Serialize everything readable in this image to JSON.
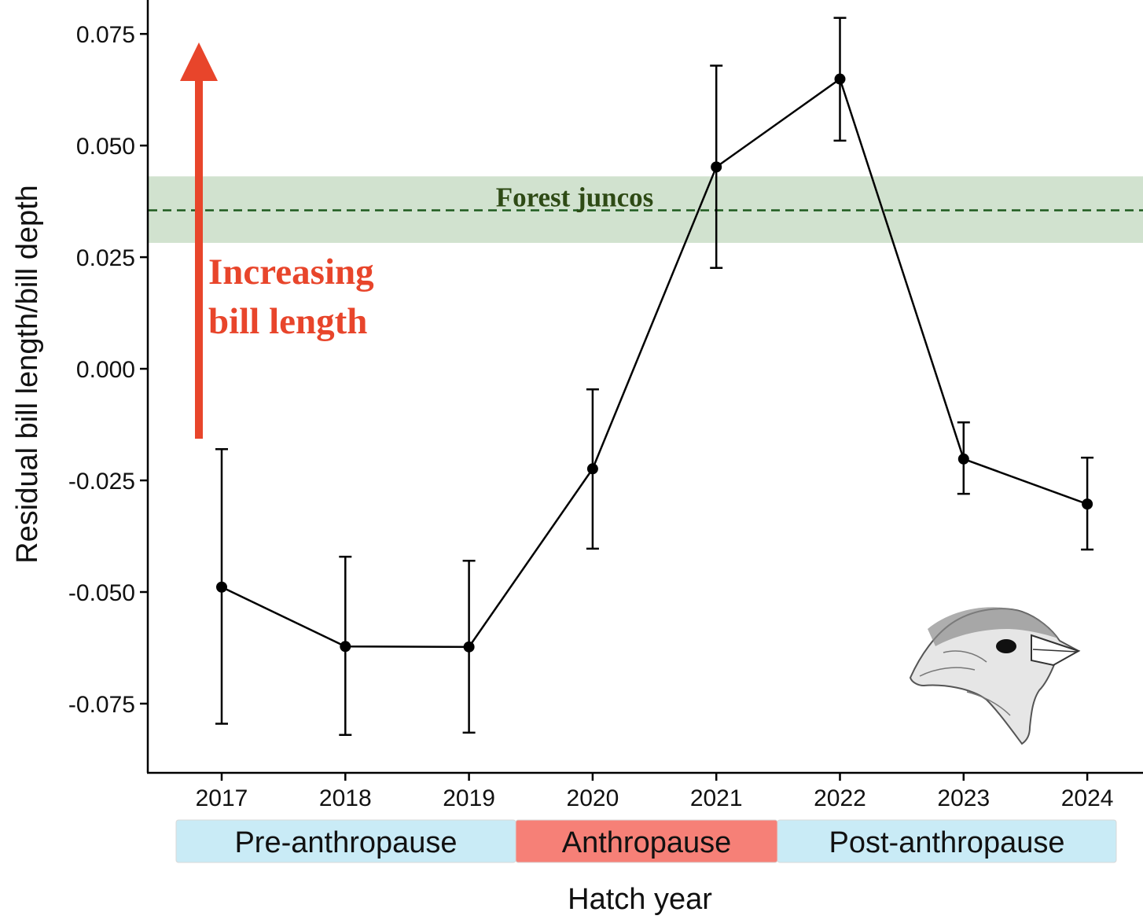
{
  "chart_data": {
    "type": "line",
    "title": "",
    "xlabel": "Hatch year",
    "ylabel": "Residual bill length/bill depth",
    "ylim": [
      -0.0905,
      0.0826
    ],
    "x": [
      "2017",
      "2018",
      "2019",
      "2020",
      "2021",
      "2022",
      "2023",
      "2024"
    ],
    "y_ticks": [
      "0.075",
      "0.050",
      "0.025",
      "0.000",
      "-0.025",
      "-0.050",
      "-0.075"
    ],
    "y_tick_values": [
      0.075,
      0.05,
      0.025,
      0.0,
      -0.025,
      -0.05,
      -0.075
    ],
    "series": [
      {
        "name": "Residual bill length/bill depth",
        "values": [
          -0.0489,
          -0.0622,
          -0.0623,
          -0.0224,
          0.0452,
          0.0649,
          -0.0202,
          -0.0303
        ],
        "error_low": [
          -0.0795,
          -0.082,
          -0.0815,
          -0.0403,
          0.0226,
          0.0511,
          -0.028,
          -0.0405
        ],
        "error_high": [
          -0.018,
          -0.0421,
          -0.043,
          -0.0046,
          0.0679,
          0.0786,
          -0.012,
          -0.0199
        ],
        "color": "#000000"
      }
    ],
    "reference": {
      "label": "Forest juncos",
      "value": 0.0355,
      "band": [
        0.0282,
        0.0431
      ],
      "line_color": "#1e5a1e",
      "band_color": "#d1e2cf",
      "text_color": "#2e4a15"
    },
    "annotation": {
      "lines": [
        "Increasing",
        "bill length"
      ],
      "color": "#e8452b"
    },
    "periods": [
      {
        "label": "Pre-anthropause",
        "color": "#c9ebf6",
        "from": "2017",
        "to": "2019"
      },
      {
        "label": "Anthropause",
        "color": "#f68077",
        "from": "2020",
        "to": "2021"
      },
      {
        "label": "Post-anthropause",
        "color": "#c9ebf6",
        "from": "2022",
        "to": "2024"
      }
    ]
  }
}
